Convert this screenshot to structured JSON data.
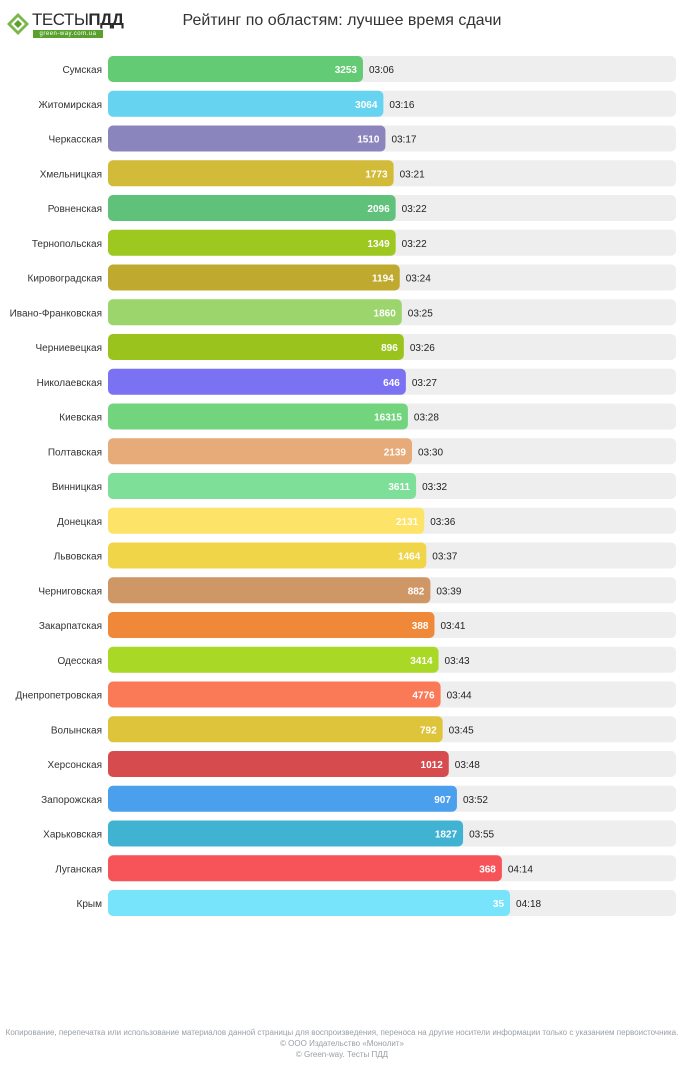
{
  "header": {
    "logo_text_bold": "ТЕСТЫ",
    "logo_text_accent": "ПДД",
    "logo_sub": "green-way.com.ua",
    "title": "Рейтинг по областям: лучшее время сдачи"
  },
  "chart_data": {
    "type": "bar",
    "orientation": "horizontal",
    "title": "Рейтинг по областям: лучшее время сдачи",
    "xlabel": "",
    "ylabel": "",
    "grid": false,
    "legend": "none",
    "categories": [
      "Сумская",
      "Житомирская",
      "Черкасская",
      "Хмельницкая",
      "Ровненская",
      "Тернопольская",
      "Кировоградская",
      "Ивано-Франковская",
      "Черниевецкая",
      "Николаевская",
      "Киевская",
      "Полтавская",
      "Винницкая",
      "Донецкая",
      "Львовская",
      "Черниговская",
      "Закарпатская",
      "Одесская",
      "Днепропетровская",
      "Волынская",
      "Херсонская",
      "Запорожская",
      "Харьковская",
      "Луганская",
      "Крым"
    ],
    "series": [
      {
        "times": [
          "03:06",
          "03:16",
          "03:17",
          "03:21",
          "03:22",
          "03:22",
          "03:24",
          "03:25",
          "03:26",
          "03:27",
          "03:28",
          "03:30",
          "03:32",
          "03:36",
          "03:37",
          "03:39",
          "03:41",
          "03:43",
          "03:44",
          "03:45",
          "03:48",
          "03:52",
          "03:55",
          "04:14",
          "04:18"
        ],
        "time_seconds": [
          186,
          196,
          197,
          201,
          202,
          202,
          204,
          205,
          206,
          207,
          208,
          210,
          212,
          216,
          217,
          219,
          221,
          223,
          224,
          225,
          228,
          232,
          235,
          254,
          258
        ],
        "counts": [
          3253,
          3064,
          1510,
          1773,
          2096,
          1349,
          1194,
          1860,
          896,
          646,
          16315,
          2139,
          3611,
          2131,
          1464,
          882,
          388,
          3414,
          4776,
          792,
          1012,
          907,
          1827,
          368,
          35
        ],
        "colors": [
          "#63cb73",
          "#66d4f0",
          "#8a85bd",
          "#d3bb3a",
          "#5fc17a",
          "#9dc81f",
          "#bfa92f",
          "#9bd56b",
          "#9ac41d",
          "#7a71f3",
          "#72d57e",
          "#e7ab7a",
          "#7ddf98",
          "#fde468",
          "#f0d548",
          "#cf9765",
          "#ef8838",
          "#aad826",
          "#fa7a58",
          "#ddc43b",
          "#d64b4d",
          "#4ba0ee",
          "#40b2d2",
          "#f65459",
          "#77e4fb"
        ]
      }
    ],
    "xlim": [
      0,
      259
    ]
  },
  "footer": {
    "line1": "Копирование, перепечатка или использование материалов данной страницы для воспроизведения, переноса на другие носители информации только с указанием первоисточника.",
    "line2": "© ООО Издательство «Монолит»",
    "line3": "© Green-way. Тесты ПДД"
  }
}
